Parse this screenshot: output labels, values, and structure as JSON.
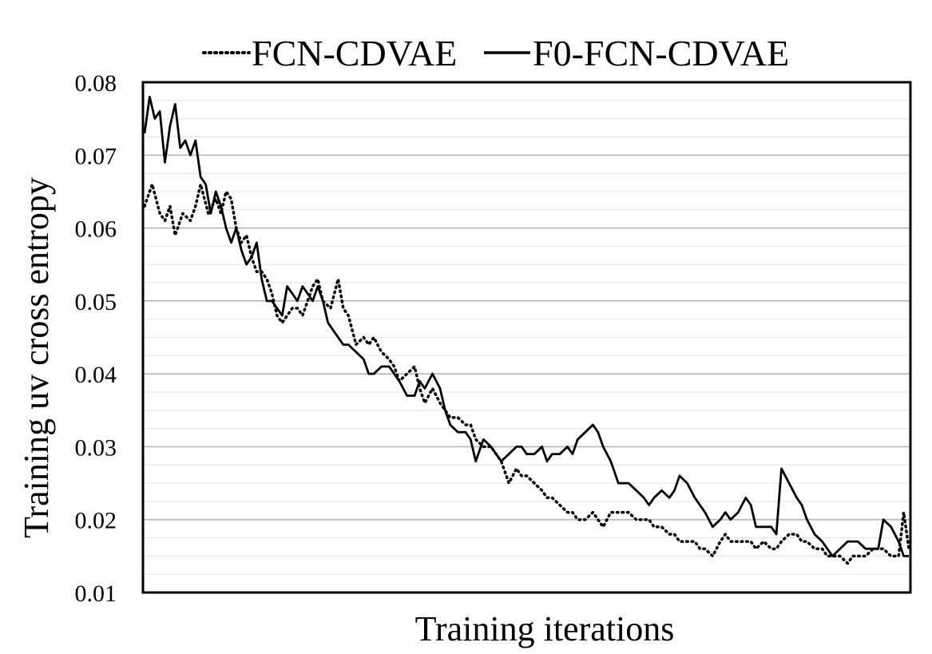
{
  "chart_data": {
    "type": "line",
    "title": "",
    "xlabel": "Training iterations",
    "ylabel": "Training uv cross entropy",
    "ylim": [
      0.01,
      0.08
    ],
    "yticks": [
      "0.08",
      "0.07",
      "0.06",
      "0.05",
      "0.04",
      "0.03",
      "0.02",
      "0.01"
    ],
    "ytick_values": [
      0.08,
      0.07,
      0.06,
      0.05,
      0.04,
      0.03,
      0.02,
      0.01
    ],
    "grid": true,
    "legend_position": "top",
    "series": [
      {
        "name": "FCN-CDVAE",
        "style": "dotted",
        "color": "#000000",
        "x": [
          0,
          3,
          6,
          8,
          10,
          12,
          15,
          18,
          20,
          22,
          25,
          28,
          30,
          32,
          34,
          36,
          38,
          40,
          42,
          44,
          46,
          48,
          50,
          52,
          54,
          56,
          58,
          60,
          62,
          64,
          66,
          68,
          70,
          73,
          76,
          78,
          80,
          83,
          86,
          88,
          90,
          93,
          96,
          98,
          100,
          103,
          106,
          108,
          110,
          113,
          116,
          118,
          120,
          123,
          126,
          128,
          130,
          133,
          136,
          138,
          140,
          143,
          146,
          148,
          150,
          153,
          156,
          158,
          160,
          163,
          166,
          168,
          170,
          173,
          176,
          178,
          180,
          183,
          186,
          188,
          190,
          193,
          196,
          198,
          200,
          203,
          206,
          208,
          210,
          213,
          216,
          218,
          220,
          223,
          226,
          228,
          230,
          233,
          236,
          238,
          240,
          243,
          246,
          248,
          250,
          253,
          256,
          258,
          260,
          263,
          266,
          268,
          270,
          273,
          276,
          278,
          280,
          283,
          286,
          288,
          290,
          293,
          296,
          298,
          300
        ],
        "values": [
          0.063,
          0.066,
          0.062,
          0.061,
          0.063,
          0.059,
          0.062,
          0.061,
          0.063,
          0.066,
          0.062,
          0.064,
          0.062,
          0.065,
          0.064,
          0.06,
          0.058,
          0.059,
          0.056,
          0.054,
          0.054,
          0.053,
          0.051,
          0.048,
          0.047,
          0.048,
          0.049,
          0.049,
          0.048,
          0.05,
          0.052,
          0.053,
          0.05,
          0.049,
          0.053,
          0.049,
          0.048,
          0.044,
          0.045,
          0.044,
          0.045,
          0.043,
          0.042,
          0.041,
          0.039,
          0.04,
          0.041,
          0.038,
          0.036,
          0.038,
          0.036,
          0.035,
          0.034,
          0.034,
          0.033,
          0.033,
          0.031,
          0.03,
          0.03,
          0.029,
          0.028,
          0.025,
          0.027,
          0.026,
          0.026,
          0.025,
          0.024,
          0.023,
          0.023,
          0.022,
          0.021,
          0.021,
          0.02,
          0.02,
          0.021,
          0.02,
          0.019,
          0.021,
          0.021,
          0.021,
          0.021,
          0.02,
          0.02,
          0.02,
          0.019,
          0.019,
          0.018,
          0.018,
          0.017,
          0.017,
          0.017,
          0.016,
          0.016,
          0.015,
          0.017,
          0.018,
          0.017,
          0.017,
          0.017,
          0.017,
          0.016,
          0.017,
          0.016,
          0.016,
          0.017,
          0.018,
          0.018,
          0.017,
          0.017,
          0.016,
          0.016,
          0.015,
          0.015,
          0.015,
          0.014,
          0.015,
          0.015,
          0.015,
          0.016,
          0.016,
          0.016,
          0.015,
          0.015,
          0.021,
          0.016
        ]
      },
      {
        "name": "F0-FCN-CDVAE",
        "style": "solid",
        "color": "#000000",
        "x": [
          0,
          2,
          4,
          6,
          8,
          10,
          12,
          14,
          16,
          18,
          20,
          22,
          24,
          26,
          28,
          30,
          32,
          34,
          36,
          38,
          40,
          42,
          44,
          46,
          48,
          50,
          52,
          54,
          56,
          58,
          60,
          62,
          64,
          66,
          68,
          70,
          72,
          74,
          76,
          78,
          80,
          83,
          86,
          88,
          90,
          93,
          96,
          98,
          100,
          103,
          106,
          108,
          110,
          113,
          116,
          118,
          120,
          123,
          126,
          128,
          130,
          133,
          136,
          138,
          140,
          143,
          146,
          148,
          150,
          153,
          156,
          158,
          160,
          163,
          166,
          168,
          170,
          173,
          176,
          178,
          180,
          183,
          186,
          188,
          190,
          193,
          196,
          198,
          200,
          203,
          206,
          208,
          210,
          213,
          216,
          218,
          220,
          223,
          226,
          228,
          230,
          233,
          236,
          238,
          240,
          243,
          246,
          248,
          250,
          253,
          256,
          258,
          260,
          263,
          266,
          268,
          270,
          273,
          276,
          278,
          280,
          283,
          286,
          288,
          290,
          293,
          296,
          298,
          300
        ],
        "values": [
          0.073,
          0.078,
          0.075,
          0.076,
          0.069,
          0.074,
          0.077,
          0.071,
          0.072,
          0.07,
          0.072,
          0.067,
          0.066,
          0.062,
          0.065,
          0.063,
          0.06,
          0.058,
          0.06,
          0.057,
          0.055,
          0.056,
          0.058,
          0.053,
          0.05,
          0.05,
          0.049,
          0.048,
          0.052,
          0.051,
          0.05,
          0.052,
          0.051,
          0.05,
          0.052,
          0.05,
          0.047,
          0.046,
          0.045,
          0.044,
          0.044,
          0.043,
          0.042,
          0.04,
          0.04,
          0.041,
          0.041,
          0.04,
          0.039,
          0.037,
          0.037,
          0.039,
          0.038,
          0.04,
          0.038,
          0.035,
          0.033,
          0.032,
          0.032,
          0.031,
          0.028,
          0.031,
          0.03,
          0.029,
          0.028,
          0.029,
          0.03,
          0.03,
          0.029,
          0.029,
          0.03,
          0.028,
          0.029,
          0.029,
          0.03,
          0.029,
          0.031,
          0.032,
          0.033,
          0.032,
          0.03,
          0.028,
          0.025,
          0.025,
          0.025,
          0.024,
          0.023,
          0.022,
          0.023,
          0.024,
          0.023,
          0.024,
          0.026,
          0.025,
          0.023,
          0.022,
          0.021,
          0.019,
          0.02,
          0.021,
          0.02,
          0.021,
          0.023,
          0.022,
          0.019,
          0.019,
          0.019,
          0.018,
          0.027,
          0.025,
          0.023,
          0.022,
          0.02,
          0.018,
          0.017,
          0.016,
          0.015,
          0.016,
          0.017,
          0.017,
          0.017,
          0.016,
          0.016,
          0.016,
          0.02,
          0.019,
          0.017,
          0.015,
          0.015
        ]
      }
    ]
  }
}
